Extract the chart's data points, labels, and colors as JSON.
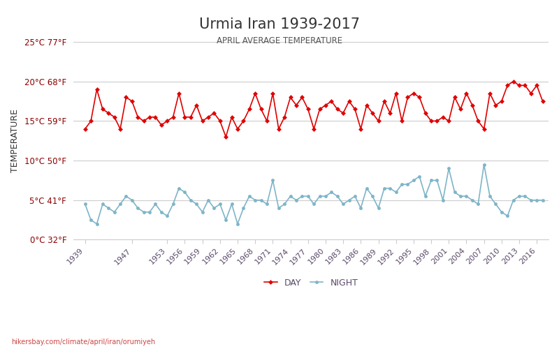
{
  "title": "Urmia Iran 1939-2017",
  "subtitle": "APRIL AVERAGE TEMPERATURE",
  "ylabel": "TEMPERATURE",
  "footer": "hikersbay.com/climate/april/iran/orumiyeh",
  "ylim": [
    0,
    25
  ],
  "yticks": [
    0,
    5,
    10,
    15,
    20,
    25
  ],
  "ytick_labels_c": [
    "0°C",
    "5°C",
    "10°C",
    "15°C",
    "20°C",
    "25°C"
  ],
  "ytick_labels_f": [
    "32°F",
    "41°F",
    "50°F",
    "59°F",
    "68°F",
    "77°F"
  ],
  "years": [
    1939,
    1940,
    1941,
    1942,
    1943,
    1944,
    1945,
    1946,
    1947,
    1948,
    1949,
    1950,
    1951,
    1952,
    1953,
    1954,
    1955,
    1956,
    1957,
    1958,
    1959,
    1960,
    1961,
    1962,
    1963,
    1964,
    1965,
    1966,
    1967,
    1968,
    1969,
    1970,
    1971,
    1972,
    1973,
    1974,
    1975,
    1976,
    1977,
    1978,
    1979,
    1980,
    1981,
    1982,
    1983,
    1984,
    1985,
    1986,
    1987,
    1988,
    1989,
    1990,
    1991,
    1992,
    1993,
    1994,
    1995,
    1996,
    1997,
    1998,
    1999,
    2000,
    2001,
    2002,
    2003,
    2004,
    2005,
    2006,
    2007,
    2008,
    2009,
    2010,
    2011,
    2012,
    2013,
    2014,
    2015,
    2016,
    2017
  ],
  "day_temps": [
    14.0,
    15.0,
    19.0,
    16.5,
    16.0,
    15.5,
    14.0,
    18.0,
    17.5,
    15.5,
    15.0,
    15.5,
    15.5,
    14.5,
    15.0,
    15.5,
    18.5,
    15.5,
    15.5,
    17.0,
    15.0,
    15.5,
    16.0,
    15.0,
    13.0,
    15.5,
    14.0,
    15.0,
    16.5,
    18.5,
    16.5,
    15.0,
    18.5,
    14.0,
    15.5,
    18.0,
    17.0,
    18.0,
    16.5,
    14.0,
    16.5,
    17.0,
    17.5,
    16.5,
    16.0,
    17.5,
    16.5,
    14.0,
    17.0,
    16.0,
    15.0,
    17.5,
    16.0,
    18.5,
    15.0,
    18.0,
    18.5,
    18.0,
    16.0,
    15.0,
    15.0,
    15.5,
    15.0,
    18.0,
    16.5,
    18.5,
    17.0,
    15.0,
    14.0,
    18.5,
    17.0,
    17.5,
    19.5,
    20.0,
    19.5,
    19.5,
    18.5,
    19.5,
    17.5
  ],
  "night_temps": [
    4.5,
    2.5,
    2.0,
    4.5,
    4.0,
    3.5,
    4.5,
    5.5,
    5.0,
    4.0,
    3.5,
    3.5,
    4.5,
    3.5,
    3.0,
    4.5,
    6.5,
    6.0,
    5.0,
    4.5,
    3.5,
    5.0,
    4.0,
    4.5,
    2.5,
    4.5,
    2.0,
    4.0,
    5.5,
    5.0,
    5.0,
    4.5,
    7.5,
    4.0,
    4.5,
    5.5,
    5.0,
    5.5,
    5.5,
    4.5,
    5.5,
    5.5,
    6.0,
    5.5,
    4.5,
    5.0,
    5.5,
    4.0,
    6.5,
    5.5,
    4.0,
    6.5,
    6.5,
    6.0,
    7.0,
    7.0,
    7.5,
    8.0,
    5.5,
    7.5,
    7.5,
    5.0,
    9.0,
    6.0,
    5.5,
    5.5,
    5.0,
    4.5,
    9.5,
    5.5,
    4.5,
    3.5,
    3.0,
    5.0,
    5.5,
    5.5,
    5.0,
    5.0,
    5.0
  ],
  "day_color": "#e00000",
  "night_color": "#7eb5c8",
  "title_color": "#333333",
  "subtitle_color": "#555555",
  "ylabel_color": "#333333",
  "tick_color": "#8b0000",
  "axis_tick_color": "#5a4a6b",
  "grid_color": "#cccccc",
  "background_color": "#ffffff",
  "xtick_years": [
    1939,
    1947,
    1953,
    1956,
    1959,
    1962,
    1965,
    1968,
    1971,
    1974,
    1977,
    1980,
    1983,
    1986,
    1989,
    1992,
    1995,
    1998,
    2001,
    2004,
    2007,
    2010,
    2013,
    2016
  ],
  "legend_night_label": "NIGHT",
  "legend_day_label": "DAY"
}
